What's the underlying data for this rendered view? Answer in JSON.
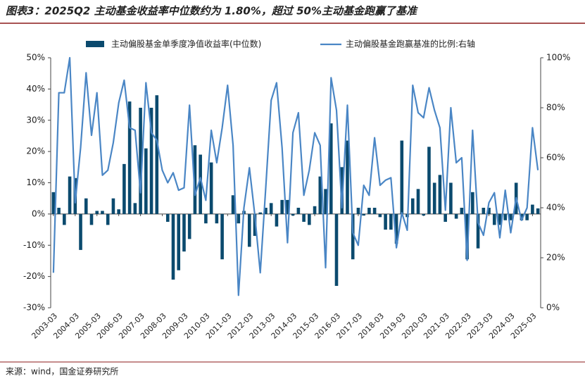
{
  "chart_data": {
    "type": "bar-line",
    "title": "图表3：2025Q2 主动基金收益率中位数约为 1.80%，超过 50%主动基金跑赢了基准",
    "source": "来源：wind，国金证券研究所",
    "categories": [
      "2003-03",
      null,
      null,
      null,
      "2004-03",
      null,
      null,
      null,
      "2005-03",
      null,
      null,
      null,
      "2006-03",
      null,
      null,
      null,
      "2007-03",
      null,
      null,
      null,
      "2008-03",
      null,
      null,
      null,
      "2009-03",
      null,
      null,
      null,
      "2010-03",
      null,
      null,
      null,
      "2011-03",
      null,
      null,
      null,
      "2012-03",
      null,
      null,
      null,
      "2013-03",
      null,
      null,
      null,
      "2014-03",
      null,
      null,
      null,
      "2015-03",
      null,
      null,
      null,
      "2016-03",
      null,
      null,
      null,
      "2017-03",
      null,
      null,
      null,
      "2018-03",
      null,
      null,
      null,
      "2019-03",
      null,
      null,
      null,
      "2020-03",
      null,
      null,
      null,
      "2021-03",
      null,
      null,
      null,
      "2022-03",
      null,
      null,
      null,
      "2023-03",
      null,
      null,
      null,
      "2024-03",
      null,
      null,
      null,
      "2025-03",
      null
    ],
    "series": [
      {
        "name": "主动偏股基金单季度净值收益率(中位数)",
        "color": "#0b4a6e",
        "kind": "bar",
        "values": [
          7,
          2,
          -3.5,
          12,
          11.5,
          -11.5,
          5,
          -3.5,
          1,
          1,
          -3.5,
          5,
          1.5,
          16,
          36,
          3.5,
          34,
          21,
          34,
          38,
          0,
          -2.5,
          -21,
          -18,
          -12,
          -8,
          22,
          19,
          -3,
          16.5,
          -3,
          -14.5,
          0,
          6,
          -3,
          1,
          -10.5,
          -7,
          0.5,
          2,
          3.5,
          -4,
          4.5,
          4.5,
          -0.5,
          2,
          -2.5,
          -3.5,
          2.5,
          12,
          8,
          29,
          -23,
          15,
          23.5,
          -14.5,
          2,
          -0.5,
          2,
          2,
          -1,
          -5,
          -5,
          -9.5,
          23.5,
          -1,
          5,
          8,
          -0.5,
          21.5,
          10,
          12.5,
          -2.5,
          10,
          -1.5,
          2,
          -14.5,
          7,
          -11,
          2,
          2,
          -3.5,
          -3.5,
          -2,
          -2,
          10,
          -2,
          -2,
          3,
          1.8
        ]
      },
      {
        "name": "主动偏股基金跑赢基准的比例:右轴",
        "color": "#4a86c5",
        "kind": "line",
        "axis": "y2",
        "values": [
          14,
          86,
          86,
          100,
          42,
          64,
          94,
          69,
          86,
          53,
          55,
          66,
          82,
          91,
          72,
          71,
          46,
          90,
          70,
          67,
          55,
          50,
          54,
          47,
          48,
          81,
          45,
          52,
          43,
          71,
          58,
          72,
          89,
          65,
          5,
          40,
          56,
          37,
          14,
          48,
          83,
          90,
          64,
          26,
          70,
          78,
          45,
          55,
          70,
          65,
          16,
          92,
          79,
          40,
          81,
          30,
          25,
          49,
          45,
          68,
          49,
          51,
          52,
          24,
          38,
          31,
          89,
          78,
          76,
          88,
          79,
          72,
          39,
          80,
          58,
          60,
          19,
          71,
          34,
          29,
          42,
          46,
          28,
          47,
          30,
          44,
          35,
          40,
          72,
          55
        ]
      }
    ],
    "ylim": [
      -30,
      50
    ],
    "yticks": [
      {
        "value": -30,
        "label": "-30%"
      },
      {
        "value": -20,
        "label": "-20%"
      },
      {
        "value": -10,
        "label": "-10%"
      },
      {
        "value": 0,
        "label": "0%"
      },
      {
        "value": 10,
        "label": "10%"
      },
      {
        "value": 20,
        "label": "20%"
      },
      {
        "value": 30,
        "label": "30%"
      },
      {
        "value": 40,
        "label": "40%"
      },
      {
        "value": 50,
        "label": "50%"
      }
    ],
    "y2lim": [
      0,
      100
    ],
    "y2ticks": [
      {
        "value": 0,
        "label": "0%"
      },
      {
        "value": 20,
        "label": "20%"
      },
      {
        "value": 40,
        "label": "40%"
      },
      {
        "value": 60,
        "label": "60%"
      },
      {
        "value": 80,
        "label": "80%"
      },
      {
        "value": 100,
        "label": "100%"
      }
    ],
    "grid": false
  }
}
